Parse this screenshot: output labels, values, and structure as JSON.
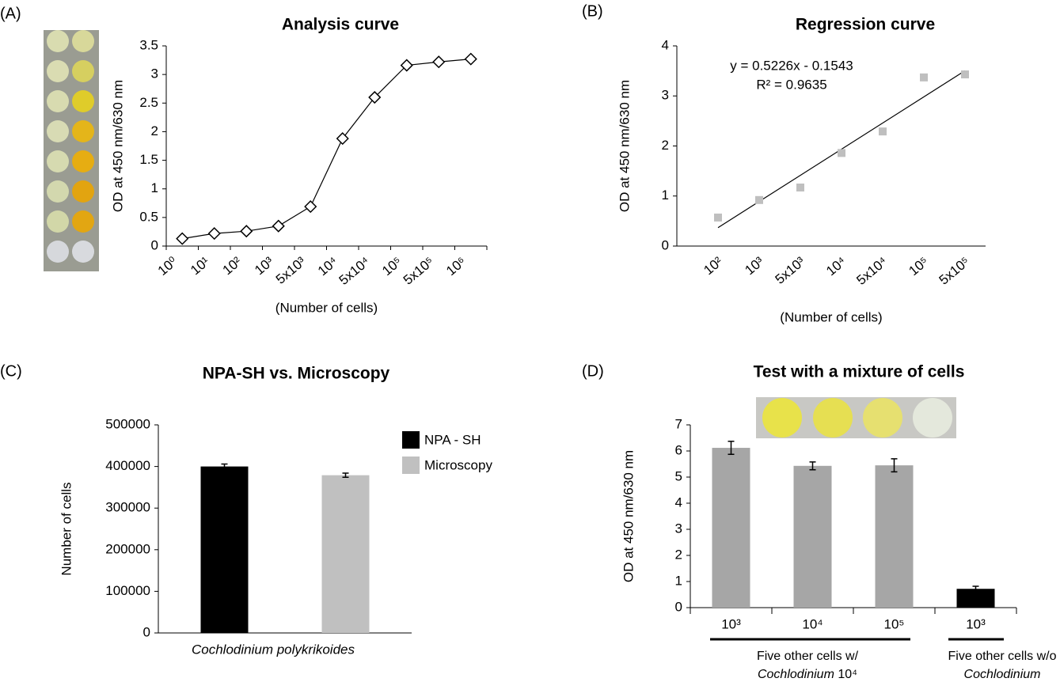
{
  "chart_data": [
    {
      "type": "line",
      "panel": "(A)",
      "title": "Analysis curve",
      "y_label": "OD at 450 nm/630 nm",
      "x_label": "(Number of cells)",
      "categories": [
        "10⁰",
        "10¹",
        "10²",
        "10³",
        "5x10³",
        "10⁴",
        "5x10⁴",
        "10⁵",
        "5x10⁵",
        "10⁶"
      ],
      "values": [
        0.13,
        0.22,
        0.26,
        0.35,
        0.69,
        1.88,
        2.6,
        3.16,
        3.22,
        3.27
      ],
      "color": "#000000",
      "marker": "diamond",
      "ylim": [
        0,
        3.5
      ],
      "yticks": [
        0,
        0.5,
        1,
        1.5,
        2,
        2.5,
        3,
        3.5
      ]
    },
    {
      "type": "scatter",
      "panel": "(B)",
      "title": "Regression curve",
      "y_label": "OD at 450 nm/630 nm",
      "x_label": "(Number of cells)",
      "categories": [
        "10²",
        "10³",
        "5x10³",
        "10⁴",
        "5x10⁴",
        "10⁵",
        "5x10⁵"
      ],
      "values": [
        0.57,
        0.92,
        1.17,
        1.86,
        2.29,
        3.37,
        3.43
      ],
      "color": "#bfbfbf",
      "marker": "square",
      "ylim": [
        0,
        4
      ],
      "yticks": [
        0,
        1,
        2,
        3,
        4
      ],
      "trendline": {
        "slope": 0.5226,
        "intercept": -0.1543,
        "color": "#000000"
      },
      "annotations": [
        "y = 0.5226x - 0.1543",
        "R² = 0.9635"
      ]
    },
    {
      "type": "bar",
      "panel": "(C)",
      "title": "NPA-SH vs. Microscopy",
      "y_label": "Number of cells",
      "categories": [
        "Cochlodinium polykrikoides"
      ],
      "series": [
        {
          "name": "NPA - SH",
          "color": "#000000",
          "values": [
            400000
          ],
          "errors": [
            6000
          ]
        },
        {
          "name": "Microscopy",
          "color": "#c0c0c0",
          "values": [
            379000
          ],
          "errors": [
            5000
          ]
        }
      ],
      "ylim": [
        0,
        500000
      ],
      "yticks": [
        0,
        100000,
        200000,
        300000,
        400000,
        500000
      ]
    },
    {
      "type": "bar",
      "panel": "(D)",
      "title": "Test with a mixture of cells",
      "y_label": "OD at 450 nm/630 nm",
      "categories": [
        "10³",
        "10⁴",
        "10⁵",
        "10³"
      ],
      "values": [
        6.12,
        5.43,
        5.45,
        0.72
      ],
      "errors": [
        0.25,
        0.15,
        0.25,
        0.1
      ],
      "colors": [
        "#a6a6a6",
        "#a6a6a6",
        "#a6a6a6",
        "#000000"
      ],
      "ylim": [
        0,
        7
      ],
      "yticks": [
        0,
        1,
        2,
        3,
        4,
        5,
        6,
        7
      ],
      "groups": [
        {
          "label": "Five other cells w/",
          "organism": "Cochlodinium",
          "suffix": "10⁴"
        },
        {
          "label": "Five other cells w/o",
          "organism": "Cochlodinium"
        }
      ]
    }
  ]
}
